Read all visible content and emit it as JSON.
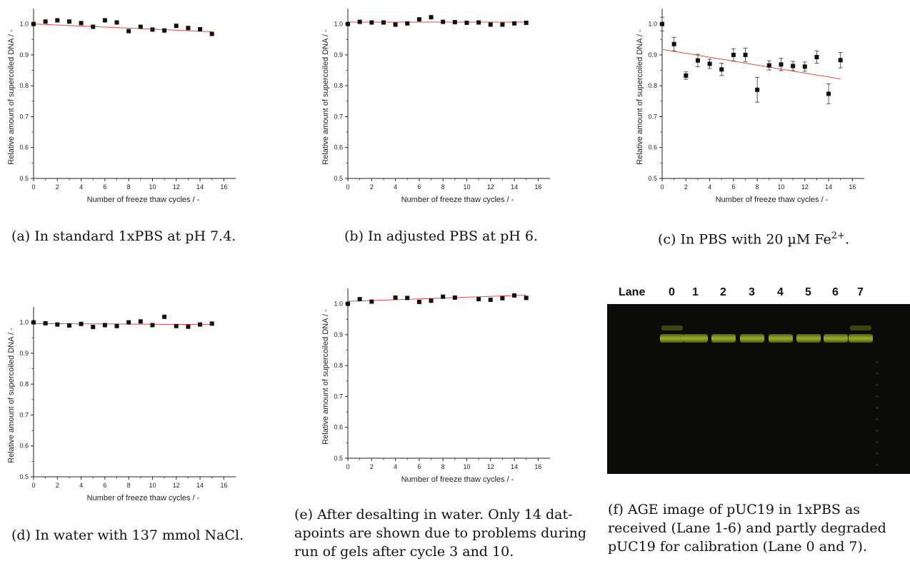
{
  "chart_data": [
    {
      "type": "scatter",
      "xlabel": "Number of freeze thaw cycles / -",
      "ylabel": "Relative amount of supercoiled DNA / -",
      "xlim": [
        0,
        17
      ],
      "ylim": [
        0.5,
        1.05
      ],
      "xticks": [
        "0",
        "2",
        "4",
        "6",
        "8",
        "10",
        "12",
        "14",
        "16"
      ],
      "yticks": [
        "0.5",
        "0.6",
        "0.7",
        "0.8",
        "0.9",
        "1.0"
      ],
      "x": [
        0,
        1,
        2,
        3,
        4,
        5,
        6,
        7,
        8,
        9,
        10,
        11,
        12,
        13,
        14,
        15
      ],
      "y": [
        1.0,
        1.008,
        1.012,
        1.008,
        1.003,
        0.991,
        1.012,
        1.005,
        0.977,
        0.991,
        0.982,
        0.979,
        0.994,
        0.987,
        0.983,
        0.968
      ],
      "fit": [
        1.0,
        0.975
      ],
      "caption": "(a) In standard 1xPBS at pH 7.4."
    },
    {
      "type": "scatter",
      "xlabel": "Number of freeze thaw cycles / -",
      "ylabel": "Relative amount of supercoiled DNA / -",
      "xlim": [
        0,
        17
      ],
      "ylim": [
        0.5,
        1.05
      ],
      "xticks": [
        "0",
        "2",
        "4",
        "6",
        "8",
        "10",
        "12",
        "14",
        "16"
      ],
      "yticks": [
        "0.5",
        "0.6",
        "0.7",
        "0.8",
        "0.9",
        "1.0"
      ],
      "x": [
        0,
        1,
        2,
        3,
        4,
        5,
        6,
        7,
        8,
        9,
        10,
        11,
        12,
        13,
        14,
        15
      ],
      "y": [
        1.0,
        1.007,
        1.005,
        1.005,
        0.998,
        1.002,
        1.015,
        1.022,
        1.007,
        1.006,
        1.004,
        1.005,
        0.998,
        0.998,
        1.002,
        1.004
      ],
      "fit": [
        1.006,
        1.006
      ],
      "caption": "(b) In adjusted PBS at pH 6."
    },
    {
      "type": "scatter",
      "xlabel": "Number of freeze thaw cycles / -",
      "ylabel": "Relative amount of supercoiled DNA / -",
      "xlim": [
        0,
        17
      ],
      "ylim": [
        0.5,
        1.05
      ],
      "xticks": [
        "0",
        "2",
        "4",
        "6",
        "8",
        "10",
        "12",
        "14",
        "16"
      ],
      "yticks": [
        "0.5",
        "0.6",
        "0.7",
        "0.8",
        "0.9",
        "1.0"
      ],
      "x": [
        0,
        1,
        2,
        3,
        4,
        5,
        6,
        7,
        8,
        9,
        10,
        11,
        12,
        13,
        14,
        15
      ],
      "y": [
        1.0,
        0.935,
        0.833,
        0.882,
        0.871,
        0.853,
        0.9,
        0.9,
        0.787,
        0.866,
        0.869,
        0.864,
        0.862,
        0.893,
        0.774,
        0.883
      ],
      "err": [
        0.022,
        0.022,
        0.012,
        0.02,
        0.015,
        0.02,
        0.02,
        0.022,
        0.04,
        0.015,
        0.02,
        0.015,
        0.015,
        0.02,
        0.032,
        0.025
      ],
      "fit": [
        0.918,
        0.822
      ],
      "caption": "(c) In PBS with 20 µM Fe",
      "caption_sup": "2+",
      "caption_end": "."
    },
    {
      "type": "scatter",
      "xlabel": "Number of freeze thaw cycles / -",
      "ylabel": "Relative amount of supercoiled DNA / -",
      "xlim": [
        0,
        17
      ],
      "ylim": [
        0.5,
        1.05
      ],
      "xticks": [
        "0",
        "2",
        "4",
        "6",
        "8",
        "10",
        "12",
        "14",
        "16"
      ],
      "yticks": [
        "0.5",
        "0.6",
        "0.7",
        "0.8",
        "0.9",
        "1.0"
      ],
      "x": [
        0,
        1,
        2,
        3,
        4,
        5,
        6,
        7,
        8,
        9,
        10,
        11,
        12,
        13,
        14,
        15
      ],
      "y": [
        1.0,
        0.997,
        0.993,
        0.99,
        0.995,
        0.985,
        0.991,
        0.988,
        1.0,
        1.003,
        0.991,
        1.018,
        0.988,
        0.986,
        0.993,
        0.996
      ],
      "fit": [
        0.996,
        0.993
      ],
      "caption": "(d) In water with 137 mmol NaCl."
    },
    {
      "type": "scatter",
      "xlabel": "Number of freeze thaw cycles / -",
      "ylabel": "Relative amount of supercoiled DNA / -",
      "xlim": [
        0,
        17
      ],
      "ylim": [
        0.5,
        1.05
      ],
      "xticks": [
        "0",
        "2",
        "4",
        "6",
        "8",
        "10",
        "12",
        "14",
        "16"
      ],
      "yticks": [
        "0.5",
        "0.6",
        "0.7",
        "0.8",
        "0.9",
        "1.0"
      ],
      "x": [
        0,
        1,
        2,
        4,
        5,
        6,
        7,
        8,
        9,
        11,
        12,
        13,
        14,
        15
      ],
      "y": [
        1.0,
        1.015,
        1.007,
        1.02,
        1.019,
        1.006,
        1.01,
        1.023,
        1.02,
        1.015,
        1.013,
        1.018,
        1.027,
        1.019
      ],
      "fit": [
        1.008,
        1.028
      ],
      "caption_lines": [
        "(e) After desalting in water. Only 14 dat-",
        "apoints are shown due to problems during",
        "run of gels after cycle 3 and 10."
      ]
    }
  ],
  "gel": {
    "lane_title": "Lane",
    "lanes": [
      "0",
      "1",
      "2",
      "3",
      "4",
      "5",
      "6",
      "7"
    ],
    "caption_lines": [
      "(f) AGE image of pUC19 in 1xPBS as",
      "received (Lane 1-6) and partly degraded",
      "pUC19 for calibration (Lane 0 and 7)."
    ]
  },
  "colors": {
    "marker": "#111111",
    "fit_line": "#e8474a",
    "gel_bg": "#0b0d09",
    "band": "#9bb02a"
  }
}
